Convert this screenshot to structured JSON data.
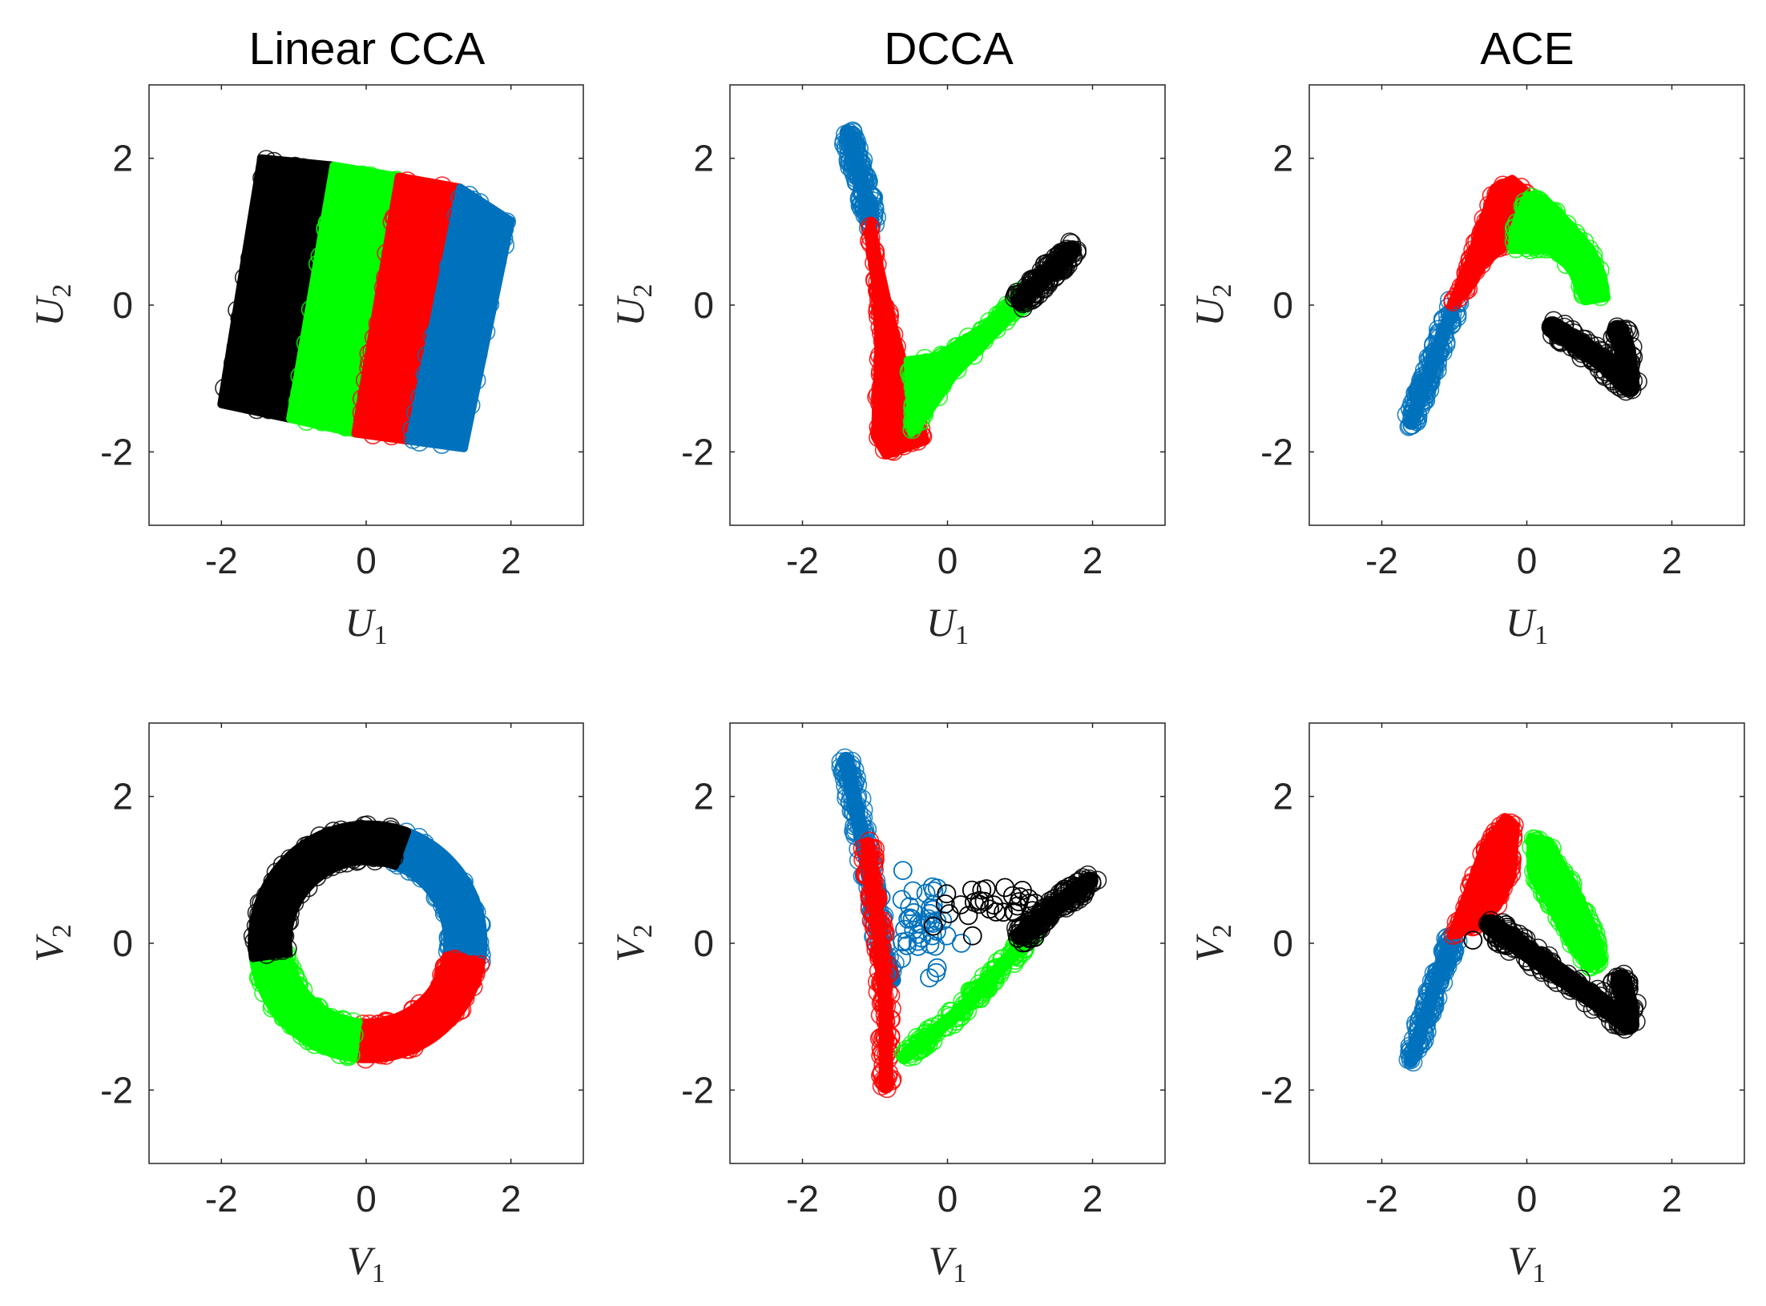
{
  "figure": {
    "column_titles": [
      "Linear CCA",
      "DCCA",
      "ACE"
    ]
  },
  "chart_data": [
    {
      "type": "scatter",
      "title": "Linear CCA",
      "xlabel": "U1",
      "ylabel": "U2",
      "xlim": [
        -3,
        3
      ],
      "ylim": [
        -3,
        3
      ],
      "xticks": [
        -2,
        0,
        2
      ],
      "yticks": [
        -2,
        0,
        2
      ],
      "tick_labels": [
        "-2",
        "0",
        "2"
      ],
      "series": [
        {
          "name": "black",
          "color": "#000000",
          "marker": "open-circle",
          "region": {
            "kind": "band",
            "polygon": [
              [
                -1.45,
                2.0
              ],
              [
                -0.45,
                1.9
              ],
              [
                -1.05,
                -1.55
              ],
              [
                -2.0,
                -1.35
              ]
            ]
          }
        },
        {
          "name": "green",
          "color": "#00ff00",
          "marker": "open-circle",
          "region": {
            "kind": "band",
            "polygon": [
              [
                -0.45,
                1.9
              ],
              [
                0.45,
                1.75
              ],
              [
                -0.15,
                -1.75
              ],
              [
                -1.05,
                -1.55
              ]
            ]
          }
        },
        {
          "name": "red",
          "color": "#ff0000",
          "marker": "open-circle",
          "region": {
            "kind": "band",
            "polygon": [
              [
                0.45,
                1.75
              ],
              [
                1.3,
                1.6
              ],
              [
                0.6,
                -1.85
              ],
              [
                -0.15,
                -1.75
              ]
            ]
          }
        },
        {
          "name": "blue",
          "color": "#0072bd",
          "marker": "open-circle",
          "region": {
            "kind": "band",
            "polygon": [
              [
                1.3,
                1.6
              ],
              [
                2.0,
                1.15
              ],
              [
                1.35,
                -1.95
              ],
              [
                0.6,
                -1.85
              ]
            ]
          }
        }
      ]
    },
    {
      "type": "scatter",
      "title": "DCCA",
      "xlabel": "U1",
      "ylabel": "U2",
      "xlim": [
        -3,
        3
      ],
      "ylim": [
        -3,
        3
      ],
      "xticks": [
        -2,
        0,
        2
      ],
      "yticks": [
        -2,
        0,
        2
      ],
      "tick_labels": [
        "-2",
        "0",
        "2"
      ],
      "series": [
        {
          "name": "blue",
          "color": "#0072bd",
          "marker": "open-circle",
          "region": {
            "kind": "stroke",
            "width": 0.22,
            "path": [
              [
                -1.38,
                2.35
              ],
              [
                -1.2,
                1.75
              ],
              [
                -1.05,
                1.15
              ]
            ]
          }
        },
        {
          "name": "red",
          "color": "#ff0000",
          "marker": "open-circle",
          "region": {
            "kind": "polygon",
            "polygon": [
              [
                -1.05,
                1.15
              ],
              [
                -0.95,
                0.6
              ],
              [
                -0.78,
                -0.15
              ],
              [
                -0.6,
                -0.8
              ],
              [
                -0.4,
                -1.5
              ],
              [
                -0.3,
                -1.85
              ],
              [
                -0.85,
                -2.05
              ],
              [
                -1.0,
                -1.8
              ],
              [
                -0.98,
                -1.2
              ],
              [
                -0.95,
                -0.5
              ],
              [
                -1.0,
                0.3
              ],
              [
                -1.1,
                1.0
              ]
            ]
          }
        },
        {
          "name": "green",
          "color": "#00ff00",
          "marker": "open-circle",
          "region": {
            "kind": "polygon",
            "polygon": [
              [
                -0.55,
                -0.75
              ],
              [
                -0.15,
                -0.7
              ],
              [
                0.5,
                -0.3
              ],
              [
                1.1,
                0.3
              ],
              [
                1.05,
                0.0
              ],
              [
                0.7,
                -0.35
              ],
              [
                0.1,
                -0.95
              ],
              [
                -0.25,
                -1.45
              ],
              [
                -0.5,
                -1.75
              ]
            ]
          }
        },
        {
          "name": "black",
          "color": "#000000",
          "marker": "open-circle",
          "region": {
            "kind": "stroke",
            "width": 0.26,
            "path": [
              [
                1.0,
                0.05
              ],
              [
                1.35,
                0.4
              ],
              [
                1.7,
                0.75
              ]
            ]
          }
        }
      ]
    },
    {
      "type": "scatter",
      "title": "ACE",
      "xlabel": "U1",
      "ylabel": "U2",
      "xlim": [
        -3,
        3
      ],
      "ylim": [
        -3,
        3
      ],
      "xticks": [
        -2,
        0,
        2
      ],
      "yticks": [
        -2,
        0,
        2
      ],
      "tick_labels": [
        "-2",
        "0",
        "2"
      ],
      "series": [
        {
          "name": "blue",
          "color": "#0072bd",
          "marker": "open-circle",
          "region": {
            "kind": "stroke",
            "width": 0.2,
            "path": [
              [
                -1.6,
                -1.6
              ],
              [
                -1.3,
                -0.8
              ],
              [
                -1.0,
                0.0
              ]
            ]
          }
        },
        {
          "name": "red",
          "color": "#ff0000",
          "marker": "open-circle",
          "region": {
            "kind": "polygon",
            "polygon": [
              [
                -1.05,
                0.0
              ],
              [
                -0.8,
                0.6
              ],
              [
                -0.65,
                1.05
              ],
              [
                -0.45,
                1.6
              ],
              [
                -0.2,
                1.72
              ],
              [
                0.0,
                1.55
              ],
              [
                -0.05,
                1.0
              ],
              [
                -0.3,
                0.8
              ],
              [
                -0.6,
                0.55
              ],
              [
                -0.85,
                0.15
              ]
            ]
          }
        },
        {
          "name": "green",
          "color": "#00ff00",
          "marker": "open-circle",
          "region": {
            "kind": "polygon",
            "polygon": [
              [
                -0.2,
                1.0
              ],
              [
                0.0,
                1.5
              ],
              [
                0.25,
                1.45
              ],
              [
                0.55,
                1.15
              ],
              [
                0.9,
                0.75
              ],
              [
                1.05,
                0.4
              ],
              [
                1.1,
                0.1
              ],
              [
                0.8,
                0.05
              ],
              [
                0.6,
                0.5
              ],
              [
                0.3,
                0.75
              ],
              [
                0.05,
                0.75
              ],
              [
                -0.2,
                0.75
              ]
            ]
          }
        },
        {
          "name": "black",
          "color": "#000000",
          "marker": "open-circle",
          "region": {
            "kind": "stroke",
            "width": 0.3,
            "path": [
              [
                0.35,
                -0.3
              ],
              [
                0.75,
                -0.55
              ],
              [
                1.1,
                -0.8
              ],
              [
                1.4,
                -1.1
              ],
              [
                1.4,
                -0.95
              ],
              [
                1.35,
                -0.6
              ],
              [
                1.25,
                -0.35
              ]
            ]
          }
        }
      ]
    },
    {
      "type": "scatter",
      "title": "",
      "xlabel": "V1",
      "ylabel": "V2",
      "xlim": [
        -3,
        3
      ],
      "ylim": [
        -3,
        3
      ],
      "xticks": [
        -2,
        0,
        2
      ],
      "yticks": [
        -2,
        0,
        2
      ],
      "tick_labels": [
        "-2",
        "0",
        "2"
      ],
      "series": [
        {
          "name": "blue",
          "color": "#0072bd",
          "marker": "open-circle",
          "region": {
            "kind": "arc",
            "center": [
              0.02,
              0.02
            ],
            "r_outer": 1.6,
            "r_inner": 1.1,
            "start_deg": 73,
            "end_deg": -10
          }
        },
        {
          "name": "red",
          "color": "#ff0000",
          "marker": "open-circle",
          "region": {
            "kind": "arc",
            "center": [
              0.02,
              0.02
            ],
            "r_outer": 1.6,
            "r_inner": 1.1,
            "start_deg": -10,
            "end_deg": -97
          }
        },
        {
          "name": "green",
          "color": "#00ff00",
          "marker": "open-circle",
          "region": {
            "kind": "arc",
            "center": [
              0.02,
              0.02
            ],
            "r_outer": 1.6,
            "r_inner": 1.1,
            "start_deg": -97,
            "end_deg": -172
          }
        },
        {
          "name": "black",
          "color": "#000000",
          "marker": "open-circle",
          "region": {
            "kind": "arc",
            "center": [
              0.02,
              0.02
            ],
            "r_outer": 1.6,
            "r_inner": 1.1,
            "start_deg": -172,
            "end_deg": -290
          }
        }
      ]
    },
    {
      "type": "scatter",
      "title": "",
      "xlabel": "V1",
      "ylabel": "V2",
      "xlim": [
        -3,
        3
      ],
      "ylim": [
        -3,
        3
      ],
      "xticks": [
        -2,
        0,
        2
      ],
      "yticks": [
        -2,
        0,
        2
      ],
      "tick_labels": [
        "-2",
        "0",
        "2"
      ],
      "series": [
        {
          "name": "blue",
          "color": "#0072bd",
          "marker": "open-circle",
          "region": {
            "kind": "stroke",
            "width": 0.22,
            "path": [
              [
                -1.4,
                2.5
              ],
              [
                -1.15,
                1.3
              ],
              [
                -0.9,
                0.0
              ],
              [
                -0.75,
                -0.5
              ]
            ]
          },
          "sparse": {
            "center": [
              -0.35,
              0.2
            ],
            "spread": [
              0.35,
              0.5
            ],
            "count": 42
          }
        },
        {
          "name": "red",
          "color": "#ff0000",
          "marker": "open-circle",
          "region": {
            "kind": "stroke",
            "width": 0.2,
            "path": [
              [
                -1.1,
                1.35
              ],
              [
                -0.95,
                0.2
              ],
              [
                -0.85,
                -0.9
              ],
              [
                -0.85,
                -1.95
              ]
            ]
          }
        },
        {
          "name": "green",
          "color": "#00ff00",
          "marker": "open-circle",
          "region": {
            "kind": "stroke",
            "width": 0.2,
            "path": [
              [
                -0.6,
                -1.55
              ],
              [
                0.2,
                -0.9
              ],
              [
                0.9,
                -0.15
              ],
              [
                1.2,
                0.2
              ]
            ]
          }
        },
        {
          "name": "black",
          "color": "#000000",
          "marker": "open-circle",
          "region": {
            "kind": "stroke",
            "width": 0.26,
            "path": [
              [
                1.0,
                0.1
              ],
              [
                1.5,
                0.5
              ],
              [
                1.95,
                0.85
              ]
            ]
          },
          "sparse": {
            "center": [
              0.65,
              0.45
            ],
            "spread": [
              0.55,
              0.3
            ],
            "count": 34
          }
        }
      ]
    },
    {
      "type": "scatter",
      "title": "",
      "xlabel": "V1",
      "ylabel": "V2",
      "xlim": [
        -3,
        3
      ],
      "ylim": [
        -3,
        3
      ],
      "xticks": [
        -2,
        0,
        2
      ],
      "yticks": [
        -2,
        0,
        2
      ],
      "tick_labels": [
        "-2",
        "0",
        "2"
      ],
      "series": [
        {
          "name": "blue",
          "color": "#0072bd",
          "marker": "open-circle",
          "region": {
            "kind": "stroke",
            "width": 0.2,
            "path": [
              [
                -1.6,
                -1.6
              ],
              [
                -1.3,
                -0.7
              ],
              [
                -1.0,
                0.1
              ]
            ]
          }
        },
        {
          "name": "red",
          "color": "#ff0000",
          "marker": "open-circle",
          "region": {
            "kind": "polygon",
            "polygon": [
              [
                -1.05,
                0.1
              ],
              [
                -0.8,
                0.75
              ],
              [
                -0.6,
                1.3
              ],
              [
                -0.3,
                1.72
              ],
              [
                -0.15,
                1.6
              ],
              [
                -0.2,
                0.9
              ],
              [
                -0.4,
                0.5
              ],
              [
                -0.7,
                0.2
              ]
            ]
          }
        },
        {
          "name": "green",
          "color": "#00ff00",
          "marker": "open-circle",
          "region": {
            "kind": "polygon",
            "polygon": [
              [
                0.05,
                1.0
              ],
              [
                0.05,
                1.45
              ],
              [
                0.3,
                1.4
              ],
              [
                0.65,
                0.8
              ],
              [
                0.95,
                0.15
              ],
              [
                1.05,
                -0.25
              ],
              [
                0.85,
                -0.35
              ],
              [
                0.55,
                0.05
              ],
              [
                0.3,
                0.55
              ],
              [
                0.1,
                0.85
              ]
            ]
          }
        },
        {
          "name": "black",
          "color": "#000000",
          "marker": "open-circle",
          "region": {
            "kind": "stroke",
            "width": 0.3,
            "path": [
              [
                -0.5,
                0.25
              ],
              [
                0.0,
                -0.1
              ],
              [
                0.5,
                -0.45
              ],
              [
                1.0,
                -0.8
              ],
              [
                1.4,
                -1.1
              ],
              [
                1.4,
                -0.9
              ],
              [
                1.3,
                -0.5
              ]
            ]
          },
          "sparse": {
            "center": [
              -0.35,
              0.05
            ],
            "spread": [
              0.25,
              0.2
            ],
            "count": 14
          }
        }
      ]
    }
  ]
}
